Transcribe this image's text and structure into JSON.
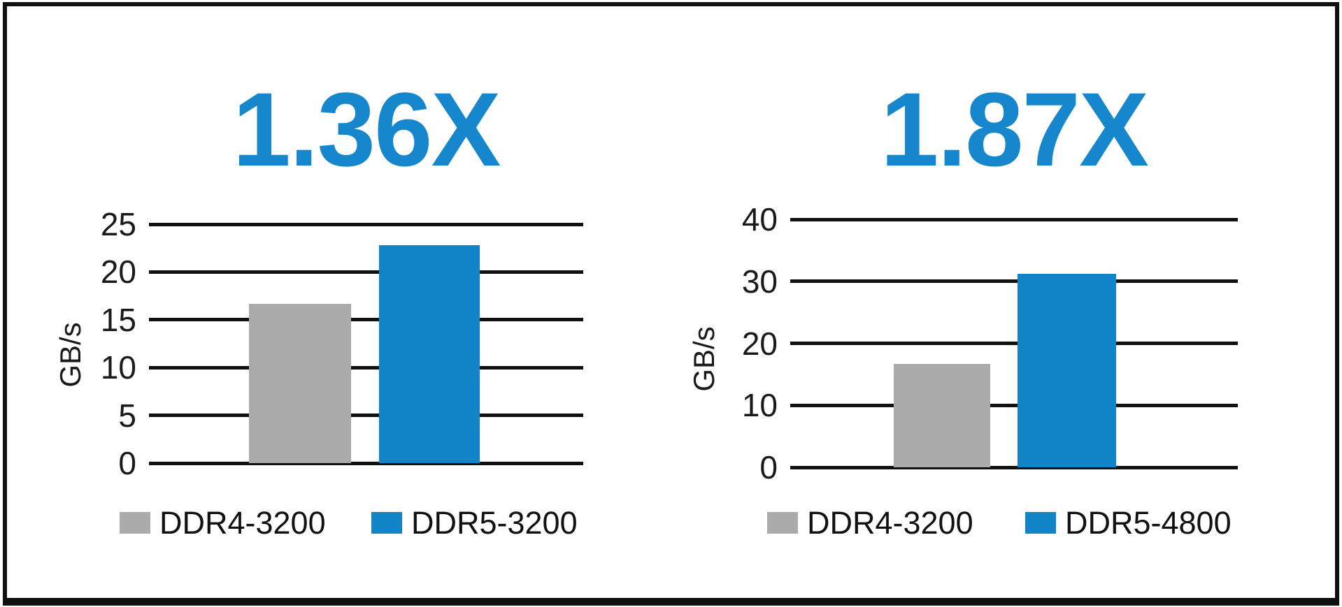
{
  "colors": {
    "title_blue": "#1787CD",
    "bar_blue": "#1185C8",
    "bar_gray": "#ABABAB",
    "line_black": "#111111"
  },
  "chart_data": [
    {
      "type": "bar",
      "title": "1.36X",
      "ylabel": "GB/s",
      "ylim": [
        0,
        25
      ],
      "yticks": [
        0,
        5,
        10,
        15,
        20,
        25
      ],
      "grid": "horizontal",
      "legend_position": "bottom",
      "categories": [
        "DDR4-3200",
        "DDR5-3200"
      ],
      "values": [
        16.7,
        22.8
      ],
      "bar_colors": [
        "#ABABAB",
        "#1185C8"
      ],
      "legend": [
        {
          "label": "DDR4-3200",
          "color": "#ABABAB"
        },
        {
          "label": "DDR5-3200",
          "color": "#1185C8"
        }
      ]
    },
    {
      "type": "bar",
      "title": "1.87X",
      "ylabel": "GB/s",
      "ylim": [
        0,
        40
      ],
      "yticks": [
        0,
        10,
        20,
        30,
        40
      ],
      "grid": "horizontal",
      "legend_position": "bottom",
      "categories": [
        "DDR4-3200",
        "DDR5-4800"
      ],
      "values": [
        16.7,
        31.2
      ],
      "bar_colors": [
        "#ABABAB",
        "#1185C8"
      ],
      "legend": [
        {
          "label": "DDR4-3200",
          "color": "#ABABAB"
        },
        {
          "label": "DDR5-4800",
          "color": "#1185C8"
        }
      ]
    }
  ]
}
